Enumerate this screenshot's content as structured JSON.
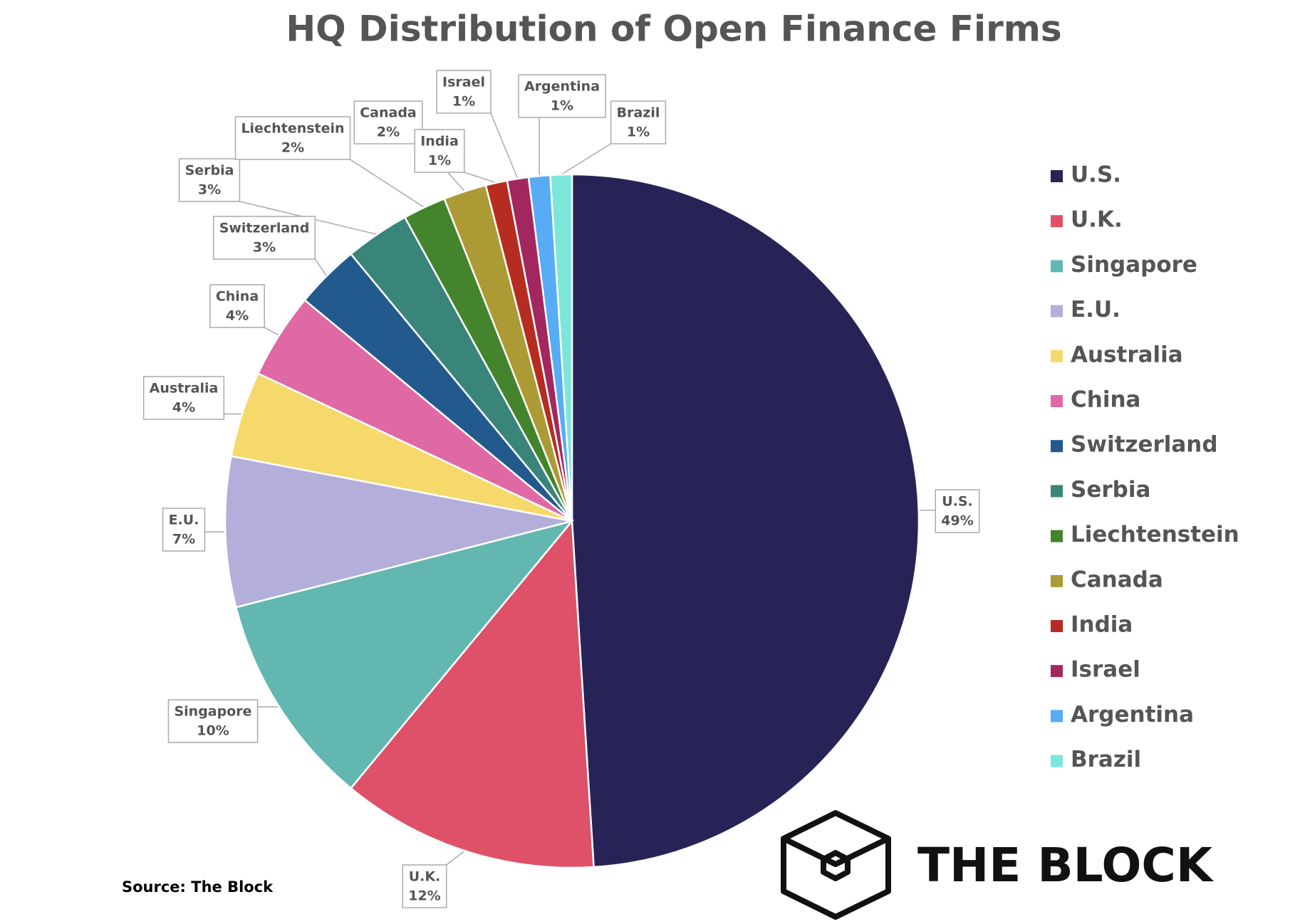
{
  "chart_data": {
    "type": "pie",
    "title": "HQ Distribution of Open Finance Firms",
    "categories": [
      "U.S.",
      "U.K.",
      "Singapore",
      "E.U.",
      "Australia",
      "China",
      "Switzerland",
      "Serbia",
      "Liechtenstein",
      "Canada",
      "India",
      "Israel",
      "Argentina",
      "Brazil"
    ],
    "values": [
      49,
      12,
      10,
      7,
      4,
      4,
      3,
      3,
      2,
      2,
      1,
      1,
      1,
      1
    ],
    "value_labels": [
      "49%",
      "12%",
      "10%",
      "7%",
      "4%",
      "4%",
      "3%",
      "3%",
      "2%",
      "2%",
      "1%",
      "1%",
      "1%",
      "1%"
    ],
    "colors": [
      "#282357",
      "#de5169",
      "#62b8b0",
      "#b3afda",
      "#f5d96a",
      "#df69a4",
      "#235a8d",
      "#3a857a",
      "#43842d",
      "#ac9a35",
      "#b72c20",
      "#a3275f",
      "#57acf5",
      "#7de6da"
    ],
    "legend": "right",
    "source": "Source: The Block",
    "logo": "THE BLOCK"
  }
}
